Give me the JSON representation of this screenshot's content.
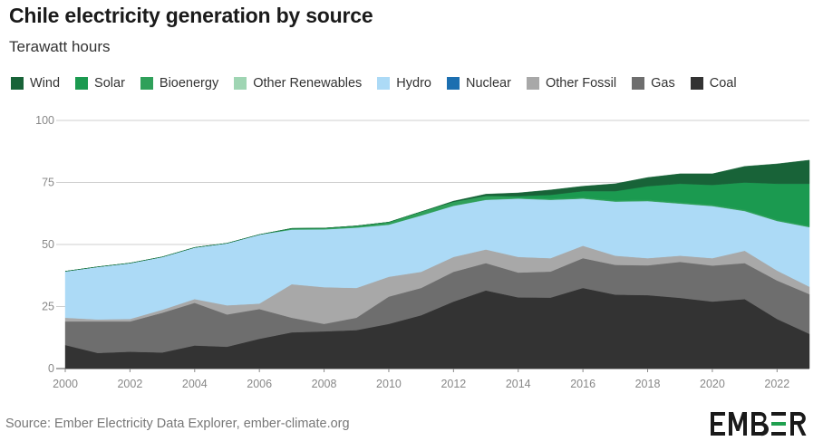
{
  "title": "Chile electricity generation by source",
  "subtitle": "Terawatt hours",
  "source": "Source: Ember Electricity Data Explorer, ember-climate.org",
  "logo_text": "EMBER",
  "chart_data": {
    "type": "area",
    "stacked": true,
    "title": "Chile electricity generation by source",
    "ylabel": "Terawatt hours",
    "ylim": [
      0,
      100
    ],
    "yticks": [
      0,
      25,
      50,
      75,
      100
    ],
    "xticks": [
      2000,
      2002,
      2004,
      2006,
      2008,
      2010,
      2012,
      2014,
      2016,
      2018,
      2020,
      2022
    ],
    "x": [
      2000,
      2001,
      2002,
      2003,
      2004,
      2005,
      2006,
      2007,
      2008,
      2009,
      2010,
      2011,
      2012,
      2013,
      2014,
      2015,
      2016,
      2017,
      2018,
      2019,
      2020,
      2021,
      2022,
      2023
    ],
    "grid": true,
    "legend_position": "top",
    "series": [
      {
        "name": "Coal",
        "color": "#333333",
        "values": [
          9.5,
          6.3,
          6.8,
          6.5,
          9.3,
          8.8,
          12.0,
          14.6,
          15.0,
          15.5,
          18.0,
          21.5,
          27.0,
          31.5,
          28.7,
          28.6,
          32.5,
          29.8,
          29.6,
          28.5,
          27.0,
          28.0,
          20.0,
          14.0
        ]
      },
      {
        "name": "Gas",
        "color": "#6e6e6e",
        "values": [
          9.5,
          12.7,
          12.2,
          16.0,
          17.2,
          13.0,
          12.0,
          5.9,
          3.0,
          5.0,
          11.0,
          11.0,
          12.0,
          11.0,
          10.0,
          10.5,
          12.0,
          12.0,
          12.0,
          14.5,
          14.5,
          14.5,
          15.5,
          16.0
        ]
      },
      {
        "name": "Other Fossil",
        "color": "#a8a8a8",
        "values": [
          1.5,
          0.8,
          1.0,
          1.2,
          1.5,
          3.7,
          2.2,
          13.5,
          14.8,
          12.0,
          8.0,
          6.5,
          6.0,
          5.5,
          6.3,
          5.4,
          5.0,
          3.7,
          2.9,
          2.5,
          3.0,
          5.0,
          4.0,
          3.0
        ]
      },
      {
        "name": "Nuclear",
        "color": "#1c6fb0",
        "values": [
          0,
          0,
          0,
          0,
          0,
          0,
          0,
          0,
          0,
          0,
          0,
          0,
          0,
          0,
          0,
          0,
          0,
          0,
          0,
          0,
          0,
          0,
          0,
          0
        ]
      },
      {
        "name": "Hydro",
        "color": "#acdaf6",
        "values": [
          18.7,
          21.2,
          22.5,
          21.3,
          20.8,
          25.0,
          27.8,
          22.0,
          23.3,
          24.3,
          21.0,
          22.7,
          20.6,
          20.0,
          23.5,
          23.5,
          19.0,
          21.8,
          23.0,
          21.0,
          21.0,
          16.0,
          20.0,
          24.0
        ]
      },
      {
        "name": "Other Renewables",
        "color": "#9fd5b3",
        "values": [
          0,
          0,
          0,
          0,
          0,
          0,
          0,
          0,
          0,
          0,
          0,
          0,
          0,
          0,
          0,
          0,
          0,
          0,
          0,
          0,
          0,
          0,
          0,
          0
        ]
      },
      {
        "name": "Bioenergy",
        "color": "#2fa05a",
        "values": [
          0,
          0,
          0,
          0,
          0,
          0,
          0,
          0.5,
          0.5,
          0.7,
          1.0,
          1.5,
          1.6,
          1.6,
          0.5,
          0.5,
          0.5,
          0.5,
          0.5,
          0.5,
          0.5,
          0.5,
          0.5,
          0.5
        ]
      },
      {
        "name": "Solar",
        "color": "#1b9a50",
        "values": [
          0,
          0,
          0,
          0,
          0,
          0,
          0,
          0,
          0,
          0,
          0,
          0,
          0,
          0,
          0.5,
          1.5,
          2.5,
          3.7,
          5.5,
          7.5,
          8.0,
          11.0,
          14.5,
          17.0
        ]
      },
      {
        "name": "Wind",
        "color": "#186338",
        "values": [
          0,
          0,
          0,
          0,
          0,
          0,
          0,
          0,
          0,
          0,
          0,
          0,
          0.3,
          0.7,
          1.3,
          2.0,
          2.0,
          3.0,
          3.5,
          4.0,
          4.5,
          6.5,
          8.0,
          9.5
        ]
      }
    ],
    "legend_order": [
      "Wind",
      "Solar",
      "Bioenergy",
      "Other Renewables",
      "Hydro",
      "Nuclear",
      "Other Fossil",
      "Gas",
      "Coal"
    ]
  }
}
